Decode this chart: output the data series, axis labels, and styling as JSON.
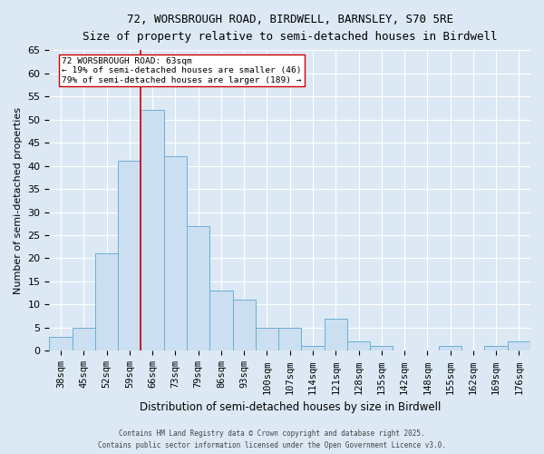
{
  "title_line1": "72, WORSBROUGH ROAD, BIRDWELL, BARNSLEY, S70 5RE",
  "title_line2": "Size of property relative to semi-detached houses in Birdwell",
  "xlabel": "Distribution of semi-detached houses by size in Birdwell",
  "ylabel": "Number of semi-detached properties",
  "categories": [
    "38sqm",
    "45sqm",
    "52sqm",
    "59sqm",
    "66sqm",
    "73sqm",
    "79sqm",
    "86sqm",
    "93sqm",
    "100sqm",
    "107sqm",
    "114sqm",
    "121sqm",
    "128sqm",
    "135sqm",
    "142sqm",
    "148sqm",
    "155sqm",
    "162sqm",
    "169sqm",
    "176sqm"
  ],
  "values": [
    3,
    5,
    21,
    41,
    52,
    42,
    27,
    13,
    11,
    5,
    5,
    1,
    7,
    2,
    1,
    0,
    0,
    1,
    0,
    1,
    2
  ],
  "bar_color": "#ccdff0",
  "bar_edge_color": "#6aaed6",
  "property_label": "72 WORSBROUGH ROAD: 63sqm",
  "pct_smaller": 19,
  "n_smaller": 46,
  "pct_larger": 79,
  "n_larger": 189,
  "vline_index": 3.5,
  "annotation_box_color": "#cc0000",
  "background_color": "#dce9f5",
  "grid_color": "#ffffff",
  "ylim": [
    0,
    65
  ],
  "yticks": [
    0,
    5,
    10,
    15,
    20,
    25,
    30,
    35,
    40,
    45,
    50,
    55,
    60,
    65
  ],
  "footer_line1": "Contains HM Land Registry data © Crown copyright and database right 2025.",
  "footer_line2": "Contains public sector information licensed under the Open Government Licence v3.0."
}
